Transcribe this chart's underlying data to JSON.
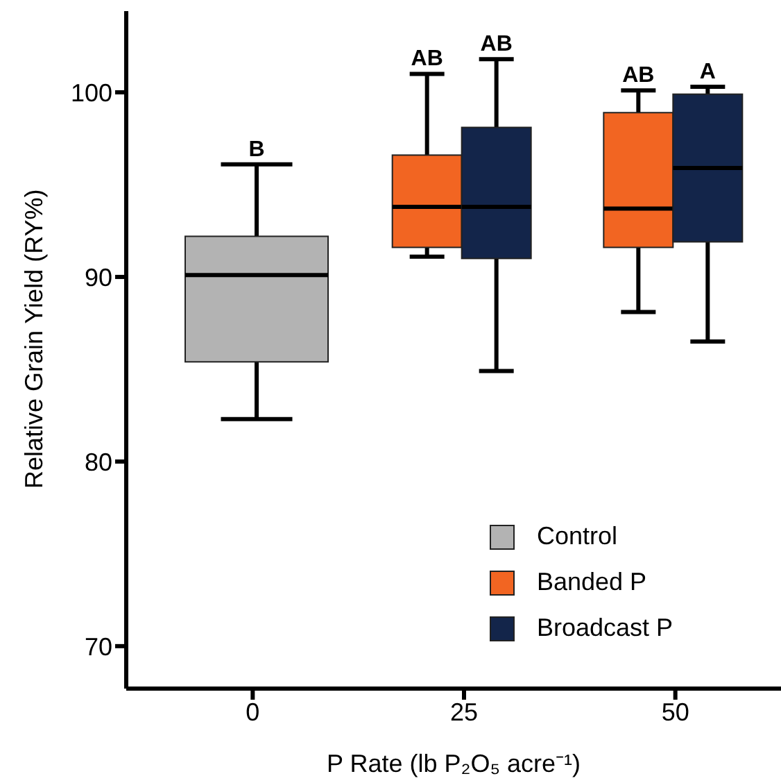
{
  "chart_data": {
    "type": "box",
    "xlabel": "P Rate (lb P₂O₅ acre⁻¹)",
    "ylabel": "Relative Grain Yield (RY%)",
    "categories": [
      "0",
      "25",
      "50"
    ],
    "series": [
      {
        "name": "Control",
        "color": "#b3b3b3",
        "boxes": [
          {
            "low": 82.3,
            "q1": 85.4,
            "median": 90.1,
            "q3": 92.2,
            "high": 96.1
          },
          null,
          null
        ]
      },
      {
        "name": "Banded P",
        "color": "#f26522",
        "boxes": [
          null,
          {
            "low": 91.1,
            "q1": 91.6,
            "median": 93.8,
            "q3": 96.6,
            "high": 101.0
          },
          {
            "low": 88.1,
            "q1": 91.6,
            "median": 93.7,
            "q3": 98.9,
            "high": 100.1
          }
        ]
      },
      {
        "name": "Broadcast P",
        "color": "#13254a",
        "boxes": [
          null,
          {
            "low": 84.9,
            "q1": 91.0,
            "median": 93.8,
            "q3": 98.1,
            "high": 101.8
          },
          {
            "low": 86.5,
            "q1": 91.9,
            "median": 95.9,
            "q3": 99.9,
            "high": 100.3
          }
        ]
      }
    ],
    "ylim": [
      67.7,
      104.4
    ],
    "yticks": [
      70,
      80,
      90,
      100
    ],
    "grid": false,
    "legend": "bottom right",
    "annotations": [
      "B",
      "AB",
      "AB",
      "AB",
      "A"
    ]
  }
}
